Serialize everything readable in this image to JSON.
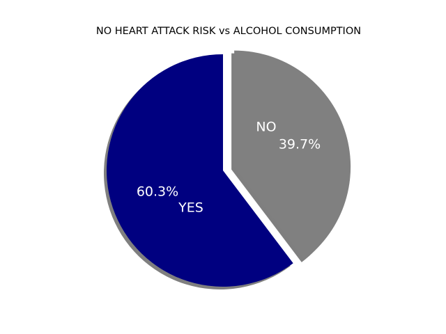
{
  "chart_data": {
    "type": "pie",
    "title": "NO HEART ATTACK RISK vs ALCOHOL CONSUMPTION",
    "slices": [
      {
        "label": "NO",
        "value": 39.7,
        "pct_label": "39.7%",
        "color": "#808080",
        "exploded": true
      },
      {
        "label": "YES",
        "value": 60.3,
        "pct_label": "60.3%",
        "color": "#000080",
        "exploded": false
      }
    ],
    "shadow": true,
    "legend": "none"
  }
}
